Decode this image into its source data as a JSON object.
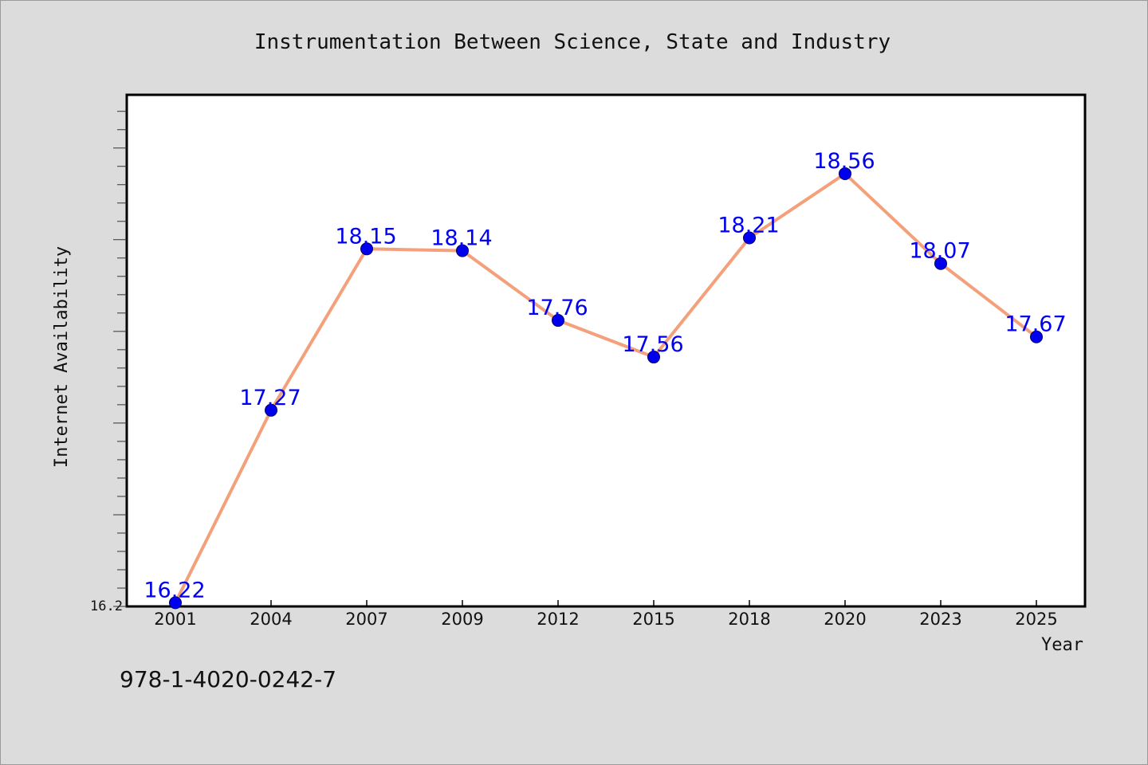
{
  "chart_data": {
    "type": "line",
    "title": "Instrumentation Between Science, State and Industry",
    "xlabel": "Year",
    "ylabel": "Internet Availability",
    "categories": [
      "2001",
      "2004",
      "2007",
      "2009",
      "2012",
      "2015",
      "2018",
      "2020",
      "2023",
      "2025"
    ],
    "series": [
      {
        "values": [
          16.22,
          17.27,
          18.15,
          18.14,
          17.76,
          17.56,
          18.21,
          18.56,
          18.07,
          17.67
        ],
        "labels": [
          "16.22",
          "17.27",
          "18.15",
          "18.14",
          "17.76",
          "17.56",
          "18.21",
          "18.56",
          "18.07",
          "17.67"
        ],
        "line_color": "#f4a07a",
        "marker_color": "#0000ee"
      }
    ],
    "yticks": [
      "16.2"
    ],
    "ylim": [
      16.2,
      18.99
    ],
    "grid": false,
    "legend": "none"
  },
  "footer_text": "978-1-4020-0242-7",
  "colors": {
    "background": "#dcdcdc",
    "plot_background": "#ffffff",
    "data_label": "#0000ee"
  }
}
